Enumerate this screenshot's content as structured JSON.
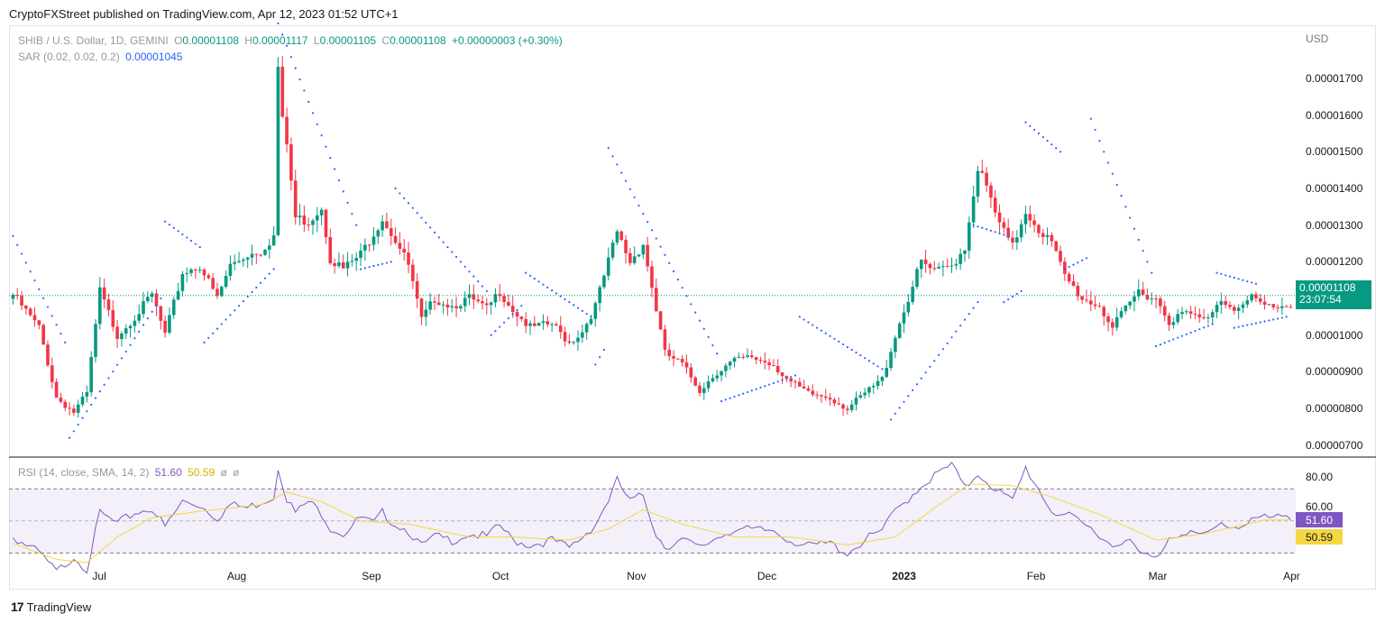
{
  "header": {
    "published": "CryptoFXStreet published on TradingView.com, Apr 12, 2023 01:52 UTC+1"
  },
  "legend": {
    "symbol": "SHIB / U.S. Dollar, 1D, GEMINI",
    "o_label": "O",
    "o": "0.00001108",
    "h_label": "H",
    "h": "0.00001117",
    "l_label": "L",
    "l": "0.00001105",
    "c_label": "C",
    "c": "0.00001108",
    "change": "+0.00000003 (+0.30%)",
    "sar_label": "SAR (0.02, 0.02, 0.2)",
    "sar_value": "0.00001045",
    "rsi_label": "RSI (14, close, SMA, 14, 2)",
    "rsi_value": "51.60",
    "rsi_sma": "50.59",
    "rsi_extra1": "ø",
    "rsi_extra2": "ø"
  },
  "axis": {
    "currency": "USD",
    "price_ticks": [
      "0.00001700",
      "0.00001600",
      "0.00001500",
      "0.00001400",
      "0.00001300",
      "0.00001200",
      "0.00001000",
      "0.00000900",
      "0.00000800",
      "0.00000700"
    ],
    "price_tick_values": [
      1.7e-05,
      1.6e-05,
      1.5e-05,
      1.4e-05,
      1.3e-05,
      1.2e-05,
      1e-05,
      9e-06,
      8e-06,
      7e-06
    ],
    "rsi_ticks": [
      "80.00",
      "60.00"
    ],
    "months": [
      "Jul",
      "Aug",
      "Sep",
      "Oct",
      "Nov",
      "Dec",
      "2023",
      "Feb",
      "Mar",
      "Apr"
    ]
  },
  "tags": {
    "last_price": "0.00001108",
    "countdown": "23:07:54",
    "rsi": "51.60",
    "rsi_sma": "50.59"
  },
  "footer": {
    "brand": "TradingView",
    "logo_glyph": "17"
  },
  "colors": {
    "up": "#089981",
    "down": "#f23645",
    "sar": "#2962ff",
    "rsi": "#7e57c2",
    "rsi_sma": "#f5d742",
    "band": "#7e57c2"
  },
  "chart_data": {
    "type": "candlestick",
    "title": "SHIB / U.S. Dollar, 1D, GEMINI",
    "ylim": [
      6.7e-06,
      1.84e-05
    ],
    "rsi_ylim": [
      15,
      87
    ],
    "rsi_bands": [
      70,
      50,
      30
    ],
    "month_anchor_index": {
      "Jul": 20,
      "Aug": 51,
      "Sep": 82,
      "Oct": 112,
      "Nov": 143,
      "Dec": 173,
      "2023": 204,
      "Feb": 235,
      "Mar": 263,
      "Apr": 294
    },
    "close_anchors": [
      [
        0,
        1.11e-05
      ],
      [
        6,
        1.02e-05
      ],
      [
        10,
        8.3e-06
      ],
      [
        14,
        7.9e-06
      ],
      [
        17,
        8.4e-06
      ],
      [
        20,
        1.12e-05
      ],
      [
        24,
        1e-05
      ],
      [
        28,
        1.05e-05
      ],
      [
        32,
        1.11e-05
      ],
      [
        35,
        1e-05
      ],
      [
        39,
        1.17e-05
      ],
      [
        43,
        1.19e-05
      ],
      [
        47,
        1.1e-05
      ],
      [
        50,
        1.19e-05
      ],
      [
        54,
        1.22e-05
      ],
      [
        57,
        1.23e-05
      ],
      [
        60,
        1.27e-05
      ],
      [
        61,
        1.73e-05
      ],
      [
        62,
        1.58e-05
      ],
      [
        63,
        1.52e-05
      ],
      [
        65,
        1.32e-05
      ],
      [
        68,
        1.31e-05
      ],
      [
        71,
        1.35e-05
      ],
      [
        73,
        1.21e-05
      ],
      [
        76,
        1.18e-05
      ],
      [
        80,
        1.22e-05
      ],
      [
        83,
        1.28e-05
      ],
      [
        85,
        1.32e-05
      ],
      [
        88,
        1.26e-05
      ],
      [
        91,
        1.19e-05
      ],
      [
        94,
        1.04e-05
      ],
      [
        97,
        1.1e-05
      ],
      [
        101,
        1.08e-05
      ],
      [
        105,
        1.1e-05
      ],
      [
        109,
        1.07e-05
      ],
      [
        112,
        1.12e-05
      ],
      [
        115,
        1.07e-05
      ],
      [
        119,
        1.02e-05
      ],
      [
        124,
        1.03e-05
      ],
      [
        128,
        9.8e-06
      ],
      [
        131,
        1.01e-05
      ],
      [
        134,
        1.08e-05
      ],
      [
        137,
        1.2e-05
      ],
      [
        139,
        1.28e-05
      ],
      [
        142,
        1.2e-05
      ],
      [
        145,
        1.25e-05
      ],
      [
        148,
        1.07e-05
      ],
      [
        150,
        9.5e-06
      ],
      [
        154,
        9.2e-06
      ],
      [
        158,
        8.5e-06
      ],
      [
        162,
        9e-06
      ],
      [
        166,
        9.3e-06
      ],
      [
        170,
        9.4e-06
      ],
      [
        175,
        9.2e-06
      ],
      [
        179,
        8.7e-06
      ],
      [
        183,
        8.4e-06
      ],
      [
        188,
        8.3e-06
      ],
      [
        192,
        8e-06
      ],
      [
        196,
        8.4e-06
      ],
      [
        200,
        8.8e-06
      ],
      [
        203,
        1e-05
      ],
      [
        206,
        1.1e-05
      ],
      [
        209,
        1.2e-05
      ],
      [
        212,
        1.17e-05
      ],
      [
        216,
        1.19e-05
      ],
      [
        219,
        1.24e-05
      ],
      [
        222,
        1.46e-05
      ],
      [
        224,
        1.4e-05
      ],
      [
        227,
        1.3e-05
      ],
      [
        230,
        1.24e-05
      ],
      [
        233,
        1.34e-05
      ],
      [
        236,
        1.29e-05
      ],
      [
        239,
        1.25e-05
      ],
      [
        242,
        1.16e-05
      ],
      [
        246,
        1.1e-05
      ],
      [
        250,
        1.08e-05
      ],
      [
        253,
        1.02e-05
      ],
      [
        256,
        1.07e-05
      ],
      [
        259,
        1.12e-05
      ],
      [
        263,
        1.1e-05
      ],
      [
        266,
        1.04e-05
      ],
      [
        270,
        1.06e-05
      ],
      [
        274,
        1.04e-05
      ],
      [
        278,
        1.1e-05
      ],
      [
        282,
        1.07e-05
      ],
      [
        285,
        1.1e-05
      ],
      [
        288,
        1.08e-05
      ]
    ],
    "sar_segments": [
      {
        "side": "above",
        "from": 0,
        "to": 12,
        "start": 1.27e-05,
        "end": 9.8e-06
      },
      {
        "side": "below",
        "from": 13,
        "to": 34,
        "start": 7.2e-06,
        "end": 1.1e-05
      },
      {
        "side": "above",
        "from": 35,
        "to": 43,
        "start": 1.31e-05,
        "end": 1.24e-05
      },
      {
        "side": "below",
        "from": 44,
        "to": 60,
        "start": 9.8e-06,
        "end": 1.18e-05
      },
      {
        "side": "above",
        "from": 61,
        "to": 79,
        "start": 1.85e-05,
        "end": 1.3e-05
      },
      {
        "side": "below",
        "from": 80,
        "to": 87,
        "start": 1.18e-05,
        "end": 1.2e-05
      },
      {
        "side": "above",
        "from": 88,
        "to": 109,
        "start": 1.4e-05,
        "end": 1.12e-05
      },
      {
        "side": "below",
        "from": 110,
        "to": 117,
        "start": 1e-05,
        "end": 1.08e-05
      },
      {
        "side": "above",
        "from": 118,
        "to": 133,
        "start": 1.17e-05,
        "end": 1.05e-05
      },
      {
        "side": "below",
        "from": 134,
        "to": 136,
        "start": 9.2e-06,
        "end": 9.6e-06
      },
      {
        "side": "above",
        "from": 137,
        "to": 162,
        "start": 1.51e-05,
        "end": 9.5e-06
      },
      {
        "side": "below",
        "from": 163,
        "to": 180,
        "start": 8.2e-06,
        "end": 8.9e-06
      },
      {
        "side": "above",
        "from": 181,
        "to": 201,
        "start": 1.05e-05,
        "end": 9e-06
      },
      {
        "side": "below",
        "from": 202,
        "to": 222,
        "start": 7.7e-06,
        "end": 1.09e-05
      },
      {
        "side": "above",
        "from": 221,
        "to": 229,
        "start": 1.3e-05,
        "end": 1.27e-05
      },
      {
        "side": "below",
        "from": 228,
        "to": 232,
        "start": 1.09e-05,
        "end": 1.12e-05
      },
      {
        "side": "above",
        "from": 233,
        "to": 241,
        "start": 1.58e-05,
        "end": 1.5e-05
      },
      {
        "side": "below",
        "from": 242,
        "to": 247,
        "start": 1.18e-05,
        "end": 1.21e-05
      },
      {
        "side": "above",
        "from": 248,
        "to": 262,
        "start": 1.59e-05,
        "end": 1.17e-05
      },
      {
        "side": "below",
        "from": 263,
        "to": 276,
        "start": 9.7e-06,
        "end": 1.03e-05
      },
      {
        "side": "above",
        "from": 277,
        "to": 286,
        "start": 1.17e-05,
        "end": 1.14e-05
      },
      {
        "side": "below",
        "from": 281,
        "to": 293,
        "start": 1.02e-05,
        "end": 1.05e-05
      }
    ],
    "rsi_anchors": [
      [
        0,
        40
      ],
      [
        6,
        30
      ],
      [
        10,
        18
      ],
      [
        14,
        28
      ],
      [
        17,
        20
      ],
      [
        20,
        55
      ],
      [
        24,
        48
      ],
      [
        28,
        55
      ],
      [
        32,
        58
      ],
      [
        35,
        46
      ],
      [
        39,
        62
      ],
      [
        43,
        60
      ],
      [
        47,
        52
      ],
      [
        50,
        60
      ],
      [
        54,
        58
      ],
      [
        57,
        62
      ],
      [
        60,
        65
      ],
      [
        61,
        84
      ],
      [
        63,
        64
      ],
      [
        65,
        55
      ],
      [
        68,
        62
      ],
      [
        71,
        55
      ],
      [
        73,
        46
      ],
      [
        76,
        42
      ],
      [
        80,
        52
      ],
      [
        83,
        48
      ],
      [
        85,
        55
      ],
      [
        88,
        48
      ],
      [
        91,
        44
      ],
      [
        94,
        34
      ],
      [
        97,
        40
      ],
      [
        101,
        38
      ],
      [
        105,
        42
      ],
      [
        109,
        40
      ],
      [
        112,
        47
      ],
      [
        115,
        38
      ],
      [
        119,
        35
      ],
      [
        124,
        38
      ],
      [
        128,
        33
      ],
      [
        131,
        40
      ],
      [
        134,
        48
      ],
      [
        137,
        63
      ],
      [
        139,
        75
      ],
      [
        142,
        62
      ],
      [
        145,
        66
      ],
      [
        148,
        42
      ],
      [
        150,
        34
      ],
      [
        154,
        38
      ],
      [
        158,
        33
      ],
      [
        162,
        40
      ],
      [
        166,
        45
      ],
      [
        170,
        44
      ],
      [
        175,
        44
      ],
      [
        179,
        38
      ],
      [
        183,
        34
      ],
      [
        188,
        36
      ],
      [
        192,
        30
      ],
      [
        196,
        38
      ],
      [
        200,
        44
      ],
      [
        203,
        56
      ],
      [
        206,
        64
      ],
      [
        209,
        72
      ],
      [
        212,
        78
      ],
      [
        216,
        85
      ],
      [
        219,
        70
      ],
      [
        222,
        80
      ],
      [
        224,
        75
      ],
      [
        227,
        68
      ],
      [
        230,
        62
      ],
      [
        233,
        83
      ],
      [
        236,
        70
      ],
      [
        239,
        56
      ],
      [
        242,
        54
      ],
      [
        246,
        48
      ],
      [
        250,
        42
      ],
      [
        253,
        34
      ],
      [
        256,
        40
      ],
      [
        259,
        30
      ],
      [
        263,
        26
      ],
      [
        266,
        40
      ],
      [
        270,
        44
      ],
      [
        274,
        40
      ],
      [
        278,
        48
      ],
      [
        282,
        46
      ],
      [
        285,
        52
      ],
      [
        288,
        51.6
      ]
    ],
    "rsi_sma_anchors": [
      [
        0,
        36
      ],
      [
        10,
        26
      ],
      [
        17,
        24
      ],
      [
        24,
        40
      ],
      [
        32,
        52
      ],
      [
        43,
        56
      ],
      [
        57,
        60
      ],
      [
        63,
        68
      ],
      [
        71,
        62
      ],
      [
        80,
        50
      ],
      [
        91,
        48
      ],
      [
        105,
        40
      ],
      [
        115,
        40
      ],
      [
        128,
        38
      ],
      [
        137,
        45
      ],
      [
        145,
        57
      ],
      [
        154,
        48
      ],
      [
        166,
        40
      ],
      [
        179,
        40
      ],
      [
        192,
        35
      ],
      [
        203,
        40
      ],
      [
        212,
        58
      ],
      [
        220,
        73
      ],
      [
        230,
        72
      ],
      [
        239,
        65
      ],
      [
        250,
        54
      ],
      [
        263,
        38
      ],
      [
        274,
        42
      ],
      [
        288,
        50.59
      ]
    ],
    "last_price": 1.108e-05
  }
}
